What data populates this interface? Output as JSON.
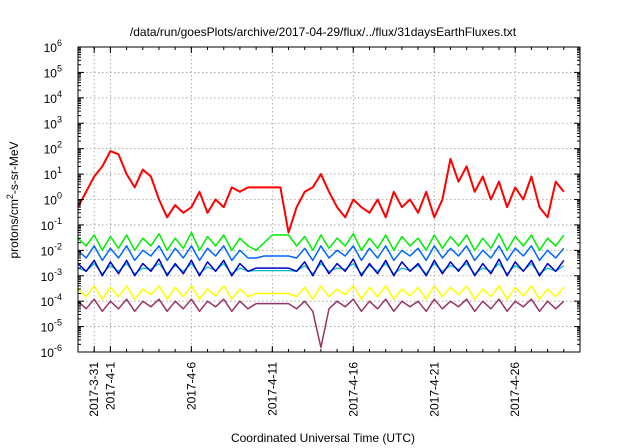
{
  "chart_data": {
    "type": "line",
    "title": "/data/run/goesPlots/archive/2017-04-29/flux/../flux/31daysEarthFluxes.txt",
    "xlabel": "Coordinated Universal Time (UTC)",
    "ylabel": "protons/cm2-s-sr-MeV",
    "ylabel_base": "protons/cm",
    "ylabel_sup": "2",
    "ylabel_rest": "-s-sr-MeV",
    "y_scale": "log",
    "ylim": [
      1e-06,
      1000000.0
    ],
    "y_ticks": [
      {
        "base": "10",
        "exp": "-6",
        "value": 1e-06
      },
      {
        "base": "10",
        "exp": "-5",
        "value": 1e-05
      },
      {
        "base": "10",
        "exp": "-4",
        "value": 0.0001
      },
      {
        "base": "10",
        "exp": "-3",
        "value": 0.001
      },
      {
        "base": "10",
        "exp": "-2",
        "value": 0.01
      },
      {
        "base": "10",
        "exp": "-1",
        "value": 0.1
      },
      {
        "base": "10",
        "exp": "0",
        "value": 1
      },
      {
        "base": "10",
        "exp": "1",
        "value": 10
      },
      {
        "base": "10",
        "exp": "2",
        "value": 100
      },
      {
        "base": "10",
        "exp": "3",
        "value": 1000
      },
      {
        "base": "10",
        "exp": "4",
        "value": 10000
      },
      {
        "base": "10",
        "exp": "5",
        "value": 100000
      },
      {
        "base": "10",
        "exp": "6",
        "value": 1000000
      }
    ],
    "xlim": [
      "2017-03-30",
      "2017-04-30"
    ],
    "x_ticks": [
      "2017-3-31",
      "2017-4-1",
      "2017-4-6",
      "2017-4-11",
      "2017-4-16",
      "2017-4-21",
      "2017-4-26"
    ],
    "x_tick_dates": [
      "2017-03-31",
      "2017-04-01",
      "2017-04-06",
      "2017-04-11",
      "2017-04-16",
      "2017-04-21",
      "2017-04-26"
    ],
    "grid": true,
    "legend": "none",
    "series": [
      {
        "color": "#ff0000",
        "stroke_width": 2,
        "days": [
          0,
          0.5,
          1,
          1.5,
          2,
          2.5,
          3,
          3.5,
          4,
          4.5,
          5,
          5.5,
          6,
          6.5,
          7,
          7.5,
          8,
          8.5,
          9,
          9.5,
          10,
          10.5,
          11,
          11.5,
          12,
          12.5,
          13,
          13.5,
          14,
          14.5,
          15,
          15.5,
          16,
          16.5,
          17,
          17.5,
          18,
          18.5,
          19,
          19.5,
          20,
          20.5,
          21,
          21.5,
          22,
          22.5,
          23,
          23.5,
          24,
          24.5,
          25,
          25.5,
          26,
          26.5,
          27,
          27.5,
          28,
          28.5,
          29,
          29.5,
          30
        ],
        "values": [
          0.5,
          2,
          8,
          20,
          80,
          60,
          10,
          3,
          15,
          8,
          1,
          0.2,
          0.6,
          0.3,
          0.5,
          2,
          0.3,
          1,
          0.5,
          3,
          2,
          3,
          3,
          3,
          3,
          3,
          0.05,
          0.5,
          2,
          3,
          10,
          2,
          0.5,
          0.2,
          1,
          0.5,
          0.3,
          1,
          0.2,
          2,
          0.5,
          1,
          0.3,
          2,
          0.2,
          1,
          40,
          5,
          20,
          2,
          8,
          1,
          5,
          0.5,
          3,
          1,
          8,
          0.5,
          0.2,
          5,
          2
        ]
      },
      {
        "color": "#00ee00",
        "stroke_width": 1.5,
        "days": [
          0,
          0.5,
          1,
          1.5,
          2,
          2.5,
          3,
          3.5,
          4,
          4.5,
          5,
          5.5,
          6,
          6.5,
          7,
          7.5,
          8,
          8.5,
          9,
          9.5,
          10,
          10.5,
          11,
          11.5,
          12,
          12.5,
          13,
          13.5,
          14,
          14.5,
          15,
          15.5,
          16,
          16.5,
          17,
          17.5,
          18,
          18.5,
          19,
          19.5,
          20,
          20.5,
          21,
          21.5,
          22,
          22.5,
          23,
          23.5,
          24,
          24.5,
          25,
          25.5,
          26,
          26.5,
          27,
          27.5,
          28,
          28.5,
          29,
          29.5,
          30
        ],
        "values": [
          0.03,
          0.015,
          0.04,
          0.01,
          0.035,
          0.012,
          0.04,
          0.01,
          0.03,
          0.015,
          0.045,
          0.01,
          0.03,
          0.012,
          0.05,
          0.01,
          0.035,
          0.015,
          0.04,
          0.01,
          0.03,
          0.015,
          0.01,
          0.02,
          0.04,
          0.04,
          0.04,
          0.015,
          0.035,
          0.01,
          0.04,
          0.012,
          0.03,
          0.015,
          0.045,
          0.01,
          0.03,
          0.012,
          0.04,
          0.01,
          0.035,
          0.015,
          0.03,
          0.01,
          0.04,
          0.012,
          0.035,
          0.015,
          0.04,
          0.01,
          0.03,
          0.012,
          0.045,
          0.01,
          0.035,
          0.015,
          0.04,
          0.01,
          0.03,
          0.015,
          0.04
        ]
      },
      {
        "color": "#0066ff",
        "stroke_width": 1.5,
        "days": [
          0,
          0.5,
          1,
          1.5,
          2,
          2.5,
          3,
          3.5,
          4,
          4.5,
          5,
          5.5,
          6,
          6.5,
          7,
          7.5,
          8,
          8.5,
          9,
          9.5,
          10,
          10.5,
          11,
          11.5,
          12,
          12.5,
          13,
          13.5,
          14,
          14.5,
          15,
          15.5,
          16,
          16.5,
          17,
          17.5,
          18,
          18.5,
          19,
          19.5,
          20,
          20.5,
          21,
          21.5,
          22,
          22.5,
          23,
          23.5,
          24,
          24.5,
          25,
          25.5,
          26,
          26.5,
          27,
          27.5,
          28,
          28.5,
          29,
          29.5,
          30
        ],
        "values": [
          0.01,
          0.005,
          0.015,
          0.004,
          0.012,
          0.005,
          0.015,
          0.004,
          0.01,
          0.006,
          0.015,
          0.004,
          0.012,
          0.005,
          0.015,
          0.004,
          0.012,
          0.006,
          0.015,
          0.004,
          0.01,
          0.005,
          0.005,
          0.006,
          0.006,
          0.006,
          0.006,
          0.005,
          0.012,
          0.004,
          0.015,
          0.005,
          0.01,
          0.006,
          0.015,
          0.004,
          0.012,
          0.005,
          0.015,
          0.004,
          0.01,
          0.006,
          0.012,
          0.004,
          0.015,
          0.005,
          0.012,
          0.006,
          0.015,
          0.004,
          0.01,
          0.005,
          0.015,
          0.004,
          0.012,
          0.006,
          0.015,
          0.004,
          0.01,
          0.005,
          0.012
        ]
      },
      {
        "color": "#00bbbb",
        "stroke_width": 1.2,
        "days": [
          0,
          0.5,
          1,
          1.5,
          2,
          2.5,
          3,
          3.5,
          4,
          4.5,
          5,
          5.5,
          6,
          6.5,
          7,
          7.5,
          8,
          8.5,
          9,
          9.5,
          10,
          10.5,
          11,
          11.5,
          12,
          12.5,
          13,
          13.5,
          14,
          14.5,
          15,
          15.5,
          16,
          16.5,
          17,
          17.5,
          18,
          18.5,
          19,
          19.5,
          20,
          20.5,
          21,
          21.5,
          22,
          22.5,
          23,
          23.5,
          24,
          24.5,
          25,
          25.5,
          26,
          26.5,
          27,
          27.5,
          28,
          28.5,
          29,
          29.5,
          30
        ],
        "values": [
          0.002,
          0.0015,
          0.003,
          0.0012,
          0.0025,
          0.0015,
          0.003,
          0.0012,
          0.002,
          0.0018,
          0.003,
          0.0012,
          0.0025,
          0.0015,
          0.003,
          0.0012,
          0.0022,
          0.0016,
          0.003,
          0.0012,
          0.002,
          0.0015,
          0.0016,
          0.0016,
          0.0016,
          0.0016,
          0.0016,
          0.0015,
          0.0025,
          0.0012,
          0.003,
          0.0015,
          0.002,
          0.0018,
          0.003,
          0.0012,
          0.0025,
          0.0015,
          0.003,
          0.0012,
          0.002,
          0.0016,
          0.0025,
          0.0012,
          0.003,
          0.0015,
          0.0025,
          0.0018,
          0.003,
          0.0012,
          0.002,
          0.0015,
          0.003,
          0.0012,
          0.0025,
          0.0016,
          0.003,
          0.0012,
          0.002,
          0.0015,
          0.0025
        ]
      },
      {
        "color": "#0000cc",
        "stroke_width": 1.5,
        "days": [
          0,
          0.5,
          1,
          1.5,
          2,
          2.5,
          3,
          3.5,
          4,
          4.5,
          5,
          5.5,
          6,
          6.5,
          7,
          7.5,
          8,
          8.5,
          9,
          9.5,
          10,
          10.5,
          11,
          11.5,
          12,
          12.5,
          13,
          13.5,
          14,
          14.5,
          15,
          15.5,
          16,
          16.5,
          17,
          17.5,
          18,
          18.5,
          19,
          19.5,
          20,
          20.5,
          21,
          21.5,
          22,
          22.5,
          23,
          23.5,
          24,
          24.5,
          25,
          25.5,
          26,
          26.5,
          27,
          27.5,
          28,
          28.5,
          29,
          29.5,
          30
        ],
        "values": [
          0.003,
          0.0015,
          0.004,
          0.001,
          0.0035,
          0.0012,
          0.004,
          0.001,
          0.003,
          0.0015,
          0.0045,
          0.001,
          0.003,
          0.0012,
          0.004,
          0.001,
          0.0035,
          0.0015,
          0.004,
          0.001,
          0.003,
          0.0015,
          0.002,
          0.002,
          0.002,
          0.002,
          0.002,
          0.0015,
          0.0035,
          0.001,
          0.004,
          0.0012,
          0.003,
          0.0015,
          0.0045,
          0.001,
          0.003,
          0.0012,
          0.004,
          0.001,
          0.0035,
          0.0015,
          0.003,
          0.001,
          0.004,
          0.0012,
          0.0035,
          0.0015,
          0.004,
          0.001,
          0.003,
          0.0012,
          0.0045,
          0.001,
          0.0035,
          0.0015,
          0.004,
          0.001,
          0.003,
          0.0015,
          0.004
        ]
      },
      {
        "color": "#ffff00",
        "stroke_width": 1.5,
        "days": [
          0,
          0.5,
          1,
          1.5,
          2,
          2.5,
          3,
          3.5,
          4,
          4.5,
          5,
          5.5,
          6,
          6.5,
          7,
          7.5,
          8,
          8.5,
          9,
          9.5,
          10,
          10.5,
          11,
          11.5,
          12,
          12.5,
          13,
          13.5,
          14,
          14.5,
          15,
          15.5,
          16,
          16.5,
          17,
          17.5,
          18,
          18.5,
          19,
          19.5,
          20,
          20.5,
          21,
          21.5,
          22,
          22.5,
          23,
          23.5,
          24,
          24.5,
          25,
          25.5,
          26,
          26.5,
          27,
          27.5,
          28,
          28.5,
          29,
          29.5,
          30
        ],
        "values": [
          0.0003,
          0.00015,
          0.0004,
          0.00012,
          0.00035,
          0.00015,
          0.0004,
          0.00012,
          0.0003,
          0.00018,
          0.0004,
          0.00012,
          0.00035,
          0.00015,
          0.0004,
          0.00012,
          0.0003,
          0.00016,
          0.0004,
          0.00012,
          0.0003,
          0.00015,
          0.0002,
          0.0002,
          0.0002,
          0.0002,
          0.0002,
          0.00015,
          0.00035,
          0.00012,
          0.0004,
          0.00015,
          0.0003,
          0.00018,
          0.0004,
          0.00012,
          0.00035,
          0.00015,
          0.0004,
          0.00012,
          0.0003,
          0.00016,
          0.00035,
          0.00012,
          0.0004,
          0.00015,
          0.00035,
          0.00018,
          0.0004,
          0.00012,
          0.0003,
          0.00015,
          0.0004,
          0.00012,
          0.00035,
          0.00016,
          0.0004,
          0.00012,
          0.0003,
          0.00015,
          0.00035
        ]
      },
      {
        "color": "#993366",
        "stroke_width": 1.5,
        "days": [
          0,
          0.5,
          1,
          1.5,
          2,
          2.5,
          3,
          3.5,
          4,
          4.5,
          5,
          5.5,
          6,
          6.5,
          7,
          7.5,
          8,
          8.5,
          9,
          9.5,
          10,
          10.5,
          11,
          11.5,
          12,
          12.5,
          13,
          13.5,
          14,
          14.5,
          15,
          15.5,
          16,
          16.5,
          17,
          17.5,
          18,
          18.5,
          19,
          19.5,
          20,
          20.5,
          21,
          21.5,
          22,
          22.5,
          23,
          23.5,
          24,
          24.5,
          25,
          25.5,
          26,
          26.5,
          27,
          27.5,
          28,
          28.5,
          29,
          29.5,
          30
        ],
        "values": [
          0.0001,
          5e-05,
          0.00012,
          4e-05,
          0.0001,
          5e-05,
          0.00012,
          4e-05,
          0.0001,
          6e-05,
          0.00012,
          4e-05,
          0.0001,
          5e-05,
          0.00012,
          4e-05,
          0.0001,
          6e-05,
          0.00012,
          4e-05,
          0.0001,
          5e-05,
          8e-05,
          8e-05,
          8e-05,
          8e-05,
          8e-05,
          5e-05,
          0.0001,
          4e-05,
          1.5e-06,
          5e-05,
          0.0001,
          6e-05,
          0.00012,
          4e-05,
          0.0001,
          5e-05,
          0.00012,
          4e-05,
          0.0001,
          6e-05,
          0.0001,
          4e-05,
          0.00012,
          5e-05,
          0.0001,
          6e-05,
          0.00012,
          4e-05,
          0.0001,
          5e-05,
          0.00012,
          4e-05,
          0.0001,
          6e-05,
          0.00012,
          4e-05,
          0.0001,
          5e-05,
          0.0001
        ]
      }
    ]
  }
}
